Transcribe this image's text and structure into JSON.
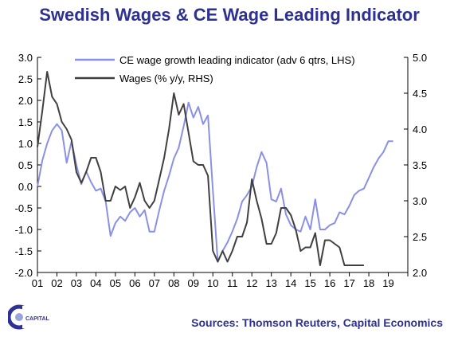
{
  "title": "Swedish Wages & CE Wage Leading Indicator",
  "source": "Sources: Thomson Reuters, Capital Economics",
  "logo_text": "CAPITAL",
  "colors": {
    "title": "#2e3192",
    "series_lhs": "#8a90e6",
    "series_rhs": "#404040"
  },
  "chart_data": {
    "type": "line",
    "x_tick_labels": [
      "01",
      "02",
      "03",
      "04",
      "05",
      "06",
      "07",
      "08",
      "09",
      "10",
      "11",
      "12",
      "13",
      "14",
      "15",
      "16",
      "17",
      "18",
      "19"
    ],
    "xlim": [
      2001,
      2020
    ],
    "y_left": {
      "ylim": [
        -2.0,
        3.0
      ],
      "ticks": [
        "3.0",
        "2.5",
        "2.0",
        "1.5",
        "1.0",
        "0.5",
        "0.0",
        "-0.5",
        "-1.0",
        "-1.5",
        "-2.0"
      ]
    },
    "y_right": {
      "ylim": [
        2.0,
        5.0
      ],
      "ticks": [
        "5.0",
        "4.5",
        "4.0",
        "3.5",
        "3.0",
        "2.5",
        "2.0"
      ]
    },
    "legend_position": "top",
    "grid": false,
    "series": [
      {
        "name": "CE wage growth leading indicator (adv 6 qtrs, LHS)",
        "axis": "left",
        "x": [
          2001.0,
          2001.25,
          2001.5,
          2001.75,
          2002.0,
          2002.25,
          2002.5,
          2002.75,
          2003.0,
          2003.25,
          2003.5,
          2003.75,
          2004.0,
          2004.25,
          2004.5,
          2004.75,
          2005.0,
          2005.25,
          2005.5,
          2005.75,
          2006.0,
          2006.25,
          2006.5,
          2006.75,
          2007.0,
          2007.25,
          2007.5,
          2007.75,
          2008.0,
          2008.25,
          2008.5,
          2008.75,
          2009.0,
          2009.25,
          2009.5,
          2009.75,
          2010.0,
          2010.25,
          2010.5,
          2010.75,
          2011.0,
          2011.25,
          2011.5,
          2011.75,
          2012.0,
          2012.25,
          2012.5,
          2012.75,
          2013.0,
          2013.25,
          2013.5,
          2013.75,
          2014.0,
          2014.25,
          2014.5,
          2014.75,
          2015.0,
          2015.25,
          2015.5,
          2015.75,
          2016.0,
          2016.25,
          2016.5,
          2016.75,
          2017.0,
          2017.25,
          2017.5,
          2017.75,
          2018.0,
          2018.25,
          2018.5,
          2018.75,
          2019.0,
          2019.25
        ],
        "values": [
          0.0,
          0.6,
          1.0,
          1.3,
          1.45,
          1.3,
          0.55,
          1.05,
          0.5,
          0.05,
          0.35,
          0.1,
          -0.1,
          -0.05,
          -0.35,
          -1.15,
          -0.85,
          -0.7,
          -0.8,
          -0.6,
          -0.5,
          -0.7,
          -0.55,
          -1.05,
          -1.05,
          -0.55,
          -0.1,
          0.25,
          0.65,
          0.9,
          1.4,
          1.95,
          1.6,
          1.85,
          1.45,
          1.65,
          -0.1,
          -1.75,
          -1.5,
          -1.3,
          -1.05,
          -0.75,
          -0.35,
          -0.2,
          0.0,
          0.45,
          0.8,
          0.55,
          -0.3,
          -0.35,
          -0.05,
          -0.65,
          -0.9,
          -1.0,
          -1.05,
          -0.7,
          -1.0,
          -0.3,
          -1.0,
          -1.0,
          -0.9,
          -0.85,
          -0.6,
          -0.65,
          -0.45,
          -0.2,
          -0.1,
          -0.05,
          0.2,
          0.45,
          0.65,
          0.8,
          1.05,
          1.05
        ]
      },
      {
        "name": "Wages (% y/y, RHS)",
        "axis": "right",
        "x": [
          2001.0,
          2001.25,
          2001.5,
          2001.75,
          2002.0,
          2002.25,
          2002.5,
          2002.75,
          2003.0,
          2003.25,
          2003.5,
          2003.75,
          2004.0,
          2004.25,
          2004.5,
          2004.75,
          2005.0,
          2005.25,
          2005.5,
          2005.75,
          2006.0,
          2006.25,
          2006.5,
          2006.75,
          2007.0,
          2007.25,
          2007.5,
          2007.75,
          2008.0,
          2008.25,
          2008.5,
          2008.75,
          2009.0,
          2009.25,
          2009.5,
          2009.75,
          2010.0,
          2010.25,
          2010.5,
          2010.75,
          2011.0,
          2011.25,
          2011.5,
          2011.75,
          2012.0,
          2012.25,
          2012.5,
          2012.75,
          2013.0,
          2013.25,
          2013.5,
          2013.75,
          2014.0,
          2014.25,
          2014.5,
          2014.75,
          2015.0,
          2015.25,
          2015.5,
          2015.75,
          2016.0,
          2016.25,
          2016.5,
          2016.75,
          2017.0,
          2017.25,
          2017.5,
          2017.75
        ],
        "values": [
          3.75,
          4.25,
          4.8,
          4.45,
          4.35,
          4.1,
          4.0,
          3.85,
          3.4,
          3.25,
          3.4,
          3.6,
          3.6,
          3.4,
          3.0,
          3.0,
          3.2,
          3.15,
          3.2,
          2.9,
          3.05,
          3.25,
          3.0,
          2.9,
          3.0,
          3.3,
          3.6,
          4.0,
          4.5,
          4.2,
          4.35,
          3.95,
          3.55,
          3.5,
          3.5,
          3.35,
          2.3,
          2.15,
          2.3,
          2.15,
          2.3,
          2.5,
          2.5,
          2.7,
          3.3,
          3.0,
          2.75,
          2.4,
          2.4,
          2.55,
          2.9,
          2.9,
          2.8,
          2.6,
          2.3,
          2.35,
          2.35,
          2.55,
          2.1,
          2.45,
          2.45,
          2.4,
          2.35,
          2.1,
          2.1,
          2.1,
          2.1,
          2.1
        ]
      }
    ]
  }
}
